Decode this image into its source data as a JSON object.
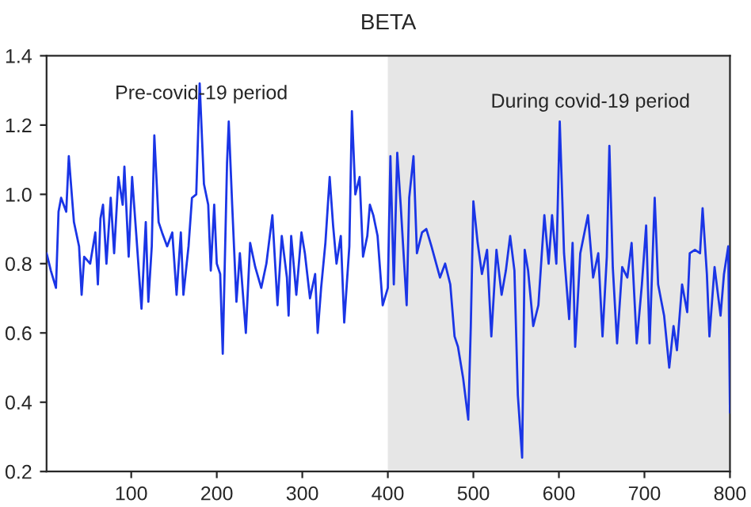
{
  "chart_data": {
    "type": "line",
    "title": "BETA",
    "annotations": [
      "Pre-covid-19 period",
      "During covid-19 period"
    ],
    "x": [
      1,
      6,
      12,
      15,
      18,
      24,
      27,
      33,
      39,
      42,
      45,
      52,
      58,
      61,
      64,
      67,
      71,
      76,
      80,
      85,
      90,
      92,
      97,
      101,
      106,
      112,
      117,
      120,
      124,
      127,
      132,
      136,
      142,
      148,
      153,
      158,
      161,
      167,
      171,
      176,
      180,
      185,
      190,
      193,
      197,
      200,
      204,
      207,
      212,
      214,
      218,
      223,
      227,
      234,
      239,
      245,
      252,
      258,
      265,
      271,
      276,
      282,
      284,
      287,
      293,
      299,
      303,
      309,
      315,
      318,
      322,
      327,
      332,
      336,
      340,
      345,
      349,
      355,
      358,
      362,
      367,
      371,
      376,
      379,
      383,
      388,
      394,
      400,
      403,
      407,
      411,
      415,
      422,
      425,
      430,
      434,
      440,
      445,
      451,
      461,
      467,
      473,
      478,
      482,
      488,
      494,
      497,
      500,
      505,
      510,
      516,
      521,
      527,
      533,
      538,
      543,
      548,
      552,
      557,
      560,
      564,
      570,
      576,
      583,
      588,
      592,
      597,
      601,
      606,
      612,
      616,
      619,
      625,
      634,
      640,
      646,
      651,
      656,
      659,
      663,
      668,
      674,
      680,
      685,
      691,
      697,
      702,
      706,
      712,
      716,
      723,
      729,
      734,
      738,
      744,
      750,
      753,
      759,
      765,
      768,
      773,
      776,
      782,
      789,
      793,
      798,
      800
    ],
    "series": [
      {
        "color": "#1a35e6",
        "values": [
          0.83,
          0.78,
          0.73,
          0.95,
          0.99,
          0.95,
          1.11,
          0.92,
          0.85,
          0.71,
          0.82,
          0.8,
          0.89,
          0.74,
          0.93,
          0.97,
          0.8,
          0.99,
          0.83,
          1.05,
          0.97,
          1.08,
          0.82,
          1.05,
          0.88,
          0.67,
          0.92,
          0.69,
          0.85,
          1.17,
          0.92,
          0.89,
          0.85,
          0.89,
          0.71,
          0.89,
          0.71,
          0.85,
          0.99,
          1.0,
          1.32,
          1.03,
          0.97,
          0.78,
          0.97,
          0.8,
          0.77,
          0.54,
          1.09,
          1.21,
          0.97,
          0.69,
          0.83,
          0.6,
          0.86,
          0.79,
          0.73,
          0.8,
          0.94,
          0.68,
          0.88,
          0.76,
          0.65,
          0.88,
          0.71,
          0.89,
          0.83,
          0.7,
          0.77,
          0.6,
          0.73,
          0.86,
          1.05,
          0.91,
          0.8,
          0.88,
          0.63,
          0.85,
          1.24,
          1.0,
          1.05,
          0.82,
          0.88,
          0.97,
          0.94,
          0.88,
          0.68,
          0.73,
          1.11,
          0.74,
          1.12,
          0.97,
          0.68,
          0.99,
          1.11,
          0.83,
          0.89,
          0.9,
          0.85,
          0.76,
          0.8,
          0.74,
          0.59,
          0.56,
          0.47,
          0.35,
          0.62,
          0.98,
          0.86,
          0.77,
          0.84,
          0.59,
          0.84,
          0.71,
          0.78,
          0.88,
          0.78,
          0.42,
          0.24,
          0.84,
          0.78,
          0.62,
          0.68,
          0.94,
          0.8,
          0.94,
          0.8,
          1.21,
          0.83,
          0.64,
          0.86,
          0.56,
          0.83,
          0.94,
          0.76,
          0.83,
          0.59,
          0.82,
          1.14,
          0.79,
          0.57,
          0.79,
          0.76,
          0.86,
          0.57,
          0.74,
          0.91,
          0.57,
          0.99,
          0.74,
          0.65,
          0.5,
          0.62,
          0.55,
          0.74,
          0.66,
          0.83,
          0.84,
          0.83,
          0.96,
          0.77,
          0.59,
          0.79,
          0.65,
          0.77,
          0.85,
          0.37
        ]
      }
    ],
    "bands": [
      {
        "axis": "x",
        "from": 400,
        "to": 800,
        "color": "#e6e6e6"
      }
    ],
    "xlim": [
      1,
      800
    ],
    "xticks": [
      100,
      200,
      300,
      400,
      500,
      600,
      700,
      800
    ],
    "ylim": [
      0.2,
      1.4
    ],
    "yticks": [
      {
        "value": 0.2,
        "label": "0.2"
      },
      {
        "value": 0.4,
        "label": "0.4"
      },
      {
        "value": 0.6,
        "label": "0.6"
      },
      {
        "value": 0.8,
        "label": "0.8"
      },
      {
        "value": 1.0,
        "label": "1.0"
      },
      {
        "value": 1.2,
        "label": "1.2"
      },
      {
        "value": 1.4,
        "label": "1.4"
      }
    ],
    "grid": false,
    "legend": false
  }
}
